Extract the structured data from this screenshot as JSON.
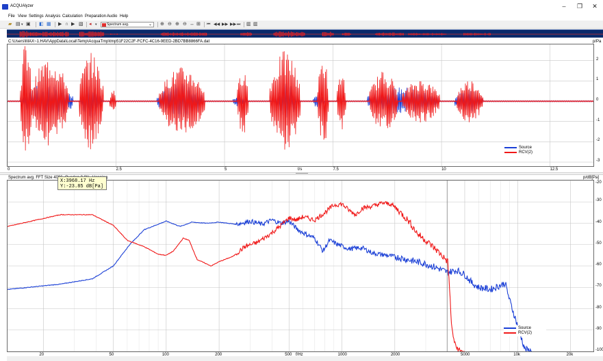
{
  "window": {
    "title": "ACQUAlyzer",
    "minimize": "–",
    "maximize": "❐",
    "close": "✕"
  },
  "menu": [
    "File",
    "View",
    "Settings",
    "Analysis",
    "Calculation",
    "Preparation",
    "Audio",
    "Help"
  ],
  "toolbar": {
    "mode_select": "Spectrum avg."
  },
  "file_path": "C:\\Users\\MAX~1.HAV\\AppData\\Local\\Temp\\AcquaTmp\\tmp51F22C2F-FCFC-4C16-9EED-2BD7BB8866FA.dat",
  "time_plot": {
    "unit": "p/Pa",
    "x_label": "t/s",
    "x_ticks": [
      "0",
      "2.5",
      "5",
      "7.5",
      "10",
      "12.5"
    ],
    "y_ticks": [
      "2",
      "1",
      "0",
      "-1",
      "-2",
      "-3"
    ],
    "legend": [
      "Source",
      "RCV(2)"
    ]
  },
  "spectrum_plot": {
    "header": "Spectrum avg.  FFT Size 4096, Overlap 0.0%, Hanning",
    "unit": "p/dB[Pa]",
    "x_label": "f/Hz",
    "x_ticks": [
      "20",
      "50",
      "100",
      "200",
      "500",
      "1000",
      "2000",
      "5000",
      "10k",
      "20k"
    ],
    "y_ticks": [
      "-20",
      "-30",
      "-40",
      "-50",
      "-60",
      "-70",
      "-80",
      "-90",
      "-100"
    ],
    "legend": [
      "Source",
      "RCV(2)"
    ],
    "tooltip": {
      "x": "X:3968.17 Hz",
      "y": "Y:-23.85 dB[Pa]"
    }
  },
  "colors": {
    "source": "#1a3fd6",
    "rcv": "#f01818",
    "overview_bg": "#0b2a6b"
  },
  "chart_data": [
    {
      "type": "line",
      "xlabel": "t/s",
      "ylabel": "p/Pa",
      "xlim": [
        0,
        13.5
      ],
      "ylim": [
        -3.2,
        2.8
      ],
      "series": [
        {
          "name": "Source",
          "bursts": [
            [
              0.35,
              1.5,
              0.9
            ],
            [
              1.7,
              2.15,
              0.9
            ],
            [
              3.45,
              4.5,
              0.9
            ],
            [
              5.2,
              5.5,
              0.3
            ],
            [
              6.2,
              6.65,
              0.9
            ],
            [
              7.05,
              7.3,
              0.4
            ],
            [
              8.3,
              9.9,
              0.7
            ],
            [
              10.3,
              10.95,
              0.6
            ]
          ]
        },
        {
          "name": "RCV(2)",
          "bursts": [
            [
              0.3,
              0.55,
              3.0
            ],
            [
              0.55,
              1.4,
              2.2
            ],
            [
              1.65,
              2.2,
              2.4
            ],
            [
              2.35,
              2.5,
              0.6
            ],
            [
              3.5,
              4.55,
              1.7
            ],
            [
              5.3,
              5.55,
              1.7
            ],
            [
              6.05,
              6.75,
              2.5
            ],
            [
              7.15,
              7.4,
              2.3
            ],
            [
              7.6,
              7.8,
              1.5
            ],
            [
              8.35,
              9.0,
              1.5
            ],
            [
              9.1,
              9.95,
              1.1
            ],
            [
              10.35,
              10.95,
              1.1
            ]
          ]
        }
      ]
    },
    {
      "type": "line",
      "xlabel": "f/Hz",
      "ylabel": "p/dB[Pa]",
      "xscale": "log",
      "xlim": [
        12.5,
        27000
      ],
      "ylim": [
        -100,
        -20
      ],
      "series": [
        {
          "name": "Source",
          "points": [
            [
              12.5,
              -71
            ],
            [
              25,
              -68.5
            ],
            [
              38,
              -66
            ],
            [
              50,
              -60
            ],
            [
              62,
              -50
            ],
            [
              75,
              -43
            ],
            [
              100,
              -39
            ],
            [
              120,
              -41.5
            ],
            [
              140,
              -39.5
            ],
            [
              170,
              -40
            ],
            [
              200,
              -39.5
            ],
            [
              250,
              -40.5
            ],
            [
              300,
              -39
            ],
            [
              350,
              -40.5
            ],
            [
              400,
              -38.5
            ],
            [
              450,
              -40
            ],
            [
              500,
              -39
            ],
            [
              560,
              -43
            ],
            [
              620,
              -45
            ],
            [
              700,
              -47
            ],
            [
              780,
              -53
            ],
            [
              850,
              -48
            ],
            [
              950,
              -50
            ],
            [
              1100,
              -52
            ],
            [
              1300,
              -51.5
            ],
            [
              1500,
              -54
            ],
            [
              1800,
              -55
            ],
            [
              2100,
              -56
            ],
            [
              2500,
              -57.5
            ],
            [
              3000,
              -59
            ],
            [
              3500,
              -61
            ],
            [
              4000,
              -63
            ],
            [
              4500,
              -62
            ],
            [
              5000,
              -64
            ],
            [
              5500,
              -68
            ],
            [
              6000,
              -70
            ],
            [
              7000,
              -71
            ],
            [
              8000,
              -69
            ],
            [
              8500,
              -68
            ],
            [
              9000,
              -76
            ],
            [
              10000,
              -88
            ],
            [
              11000,
              -99
            ],
            [
              12000,
              -100
            ]
          ]
        },
        {
          "name": "RCV(2)",
          "points": [
            [
              12.5,
              -41.5
            ],
            [
              25,
              -36
            ],
            [
              38,
              -36
            ],
            [
              50,
              -41
            ],
            [
              60,
              -48
            ],
            [
              75,
              -51
            ],
            [
              90,
              -54.5
            ],
            [
              100,
              -55
            ],
            [
              110,
              -53
            ],
            [
              125,
              -47
            ],
            [
              135,
              -48
            ],
            [
              150,
              -57
            ],
            [
              180,
              -60
            ],
            [
              200,
              -58
            ],
            [
              240,
              -55.5
            ],
            [
              280,
              -51
            ],
            [
              330,
              -49
            ],
            [
              400,
              -44.5
            ],
            [
              450,
              -41
            ],
            [
              500,
              -37.5
            ],
            [
              550,
              -38.5
            ],
            [
              600,
              -37
            ],
            [
              700,
              -38.5
            ],
            [
              800,
              -35
            ],
            [
              900,
              -31.5
            ],
            [
              1000,
              -31
            ],
            [
              1100,
              -34
            ],
            [
              1200,
              -36
            ],
            [
              1300,
              -33
            ],
            [
              1500,
              -32
            ],
            [
              1700,
              -30.5
            ],
            [
              1900,
              -31
            ],
            [
              2100,
              -34
            ],
            [
              2400,
              -39
            ],
            [
              2700,
              -45
            ],
            [
              3000,
              -48
            ],
            [
              3400,
              -52
            ],
            [
              3800,
              -56
            ],
            [
              4000,
              -58
            ],
            [
              4100,
              -70
            ],
            [
              4200,
              -88
            ],
            [
              4400,
              -97
            ],
            [
              4700,
              -100
            ],
            [
              5000,
              -100
            ]
          ]
        }
      ]
    }
  ]
}
